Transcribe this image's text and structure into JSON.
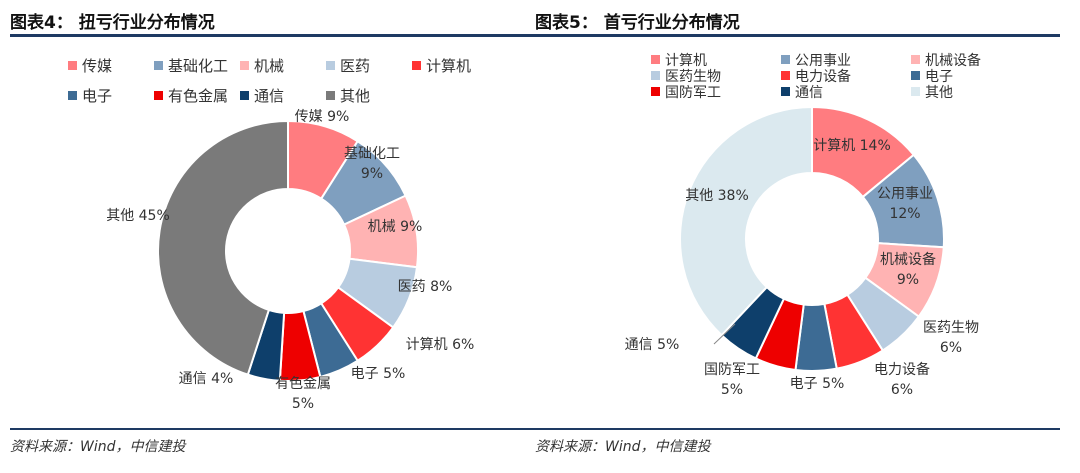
{
  "page": {
    "left": {
      "title": "图表4：  扭亏行业分布情况",
      "source": "资料来源：Wind，中信建投"
    },
    "right": {
      "title": "图表5：  首亏行业分布情况",
      "source": "资料来源：Wind，中信建投"
    }
  },
  "chart_data": [
    {
      "type": "pie",
      "variant": "donut",
      "title": "扭亏行业分布情况",
      "start_angle_deg": 0,
      "direction": "clockwise",
      "legend_position": "top",
      "slices": [
        {
          "label": "传媒",
          "value": 9,
          "display": "9%",
          "color": "#ff7c80"
        },
        {
          "label": "基础化工",
          "value": 9,
          "display": "9%",
          "color": "#7f9fbf"
        },
        {
          "label": "机械",
          "value": 9,
          "display": "9%",
          "color": "#ffb3b3"
        },
        {
          "label": "医药",
          "value": 8,
          "display": "8%",
          "color": "#b8cce0"
        },
        {
          "label": "计算机",
          "value": 6,
          "display": "6%",
          "color": "#ff3333"
        },
        {
          "label": "电子",
          "value": 5,
          "display": "5%",
          "color": "#3d6b94"
        },
        {
          "label": "有色金属",
          "value": 5,
          "display": "5%",
          "color": "#ee0000"
        },
        {
          "label": "通信",
          "value": 4,
          "display": "4%",
          "color": "#0e3f6b"
        },
        {
          "label": "其他",
          "value": 45,
          "display": "45%",
          "color": "#7a7a7a"
        }
      ]
    },
    {
      "type": "pie",
      "variant": "donut",
      "title": "首亏行业分布情况",
      "start_angle_deg": 0,
      "direction": "clockwise",
      "legend_position": "top",
      "slices": [
        {
          "label": "计算机",
          "value": 14,
          "display": "14%",
          "color": "#ff7c80"
        },
        {
          "label": "公用事业",
          "value": 12,
          "display": "12%",
          "color": "#7f9fbf"
        },
        {
          "label": "机械设备",
          "value": 9,
          "display": "9%",
          "color": "#ffb3b3"
        },
        {
          "label": "医药生物",
          "value": 6,
          "display": "6%",
          "color": "#b8cce0"
        },
        {
          "label": "电力设备",
          "value": 6,
          "display": "6%",
          "color": "#ff3333"
        },
        {
          "label": "电子",
          "value": 5,
          "display": "5%",
          "color": "#3d6b94"
        },
        {
          "label": "国防军工",
          "value": 5,
          "display": "5%",
          "color": "#ee0000"
        },
        {
          "label": "通信",
          "value": 5,
          "display": "5%",
          "color": "#0e3f6b"
        },
        {
          "label": "其他",
          "value": 38,
          "display": "38%",
          "color": "#dbe9ef"
        }
      ]
    }
  ]
}
